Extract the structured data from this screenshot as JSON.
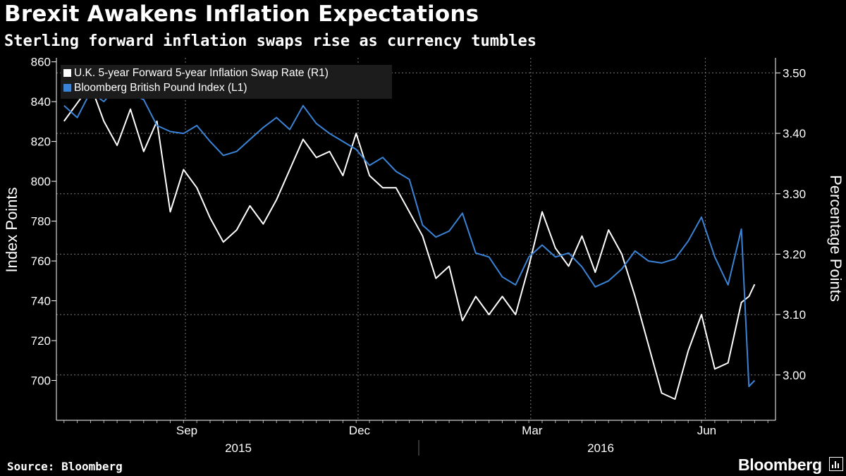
{
  "header": {
    "title": "Brexit Awakens Inflation Expectations",
    "subtitle": "Sterling forward inflation swaps rise as currency tumbles"
  },
  "footer": {
    "source": "Source: Bloomberg",
    "brand": "Bloomberg"
  },
  "colors": {
    "swap": "#ffffff",
    "pound": "#3b83d6",
    "grid": "#7a7a7a",
    "background": "#000000"
  },
  "chart_data": {
    "type": "line",
    "title": "Brexit Awakens Inflation Expectations",
    "subtitle": "Sterling forward inflation swaps rise as currency tumbles",
    "ylabel_left": "Index Points",
    "ylabel_right": "Percentage Points",
    "ylim_left": [
      680,
      862
    ],
    "ylim_right": [
      2.925,
      3.525
    ],
    "yticks_left": [
      "860",
      "840",
      "820",
      "800",
      "780",
      "760",
      "740",
      "720",
      "700"
    ],
    "yticks_right": [
      "3.50",
      "3.40",
      "3.30",
      "3.20",
      "3.10",
      "3.00"
    ],
    "xticks": [
      "Sep",
      "Dec",
      "Mar",
      "Jun"
    ],
    "years": [
      "2015",
      "2016"
    ],
    "grid": true,
    "legend_position": "top-left",
    "x": [
      "2015-06-29",
      "2015-07-06",
      "2015-07-13",
      "2015-07-20",
      "2015-07-27",
      "2015-08-03",
      "2015-08-10",
      "2015-08-17",
      "2015-08-24",
      "2015-08-31",
      "2015-09-07",
      "2015-09-14",
      "2015-09-21",
      "2015-09-28",
      "2015-10-05",
      "2015-10-12",
      "2015-10-19",
      "2015-10-26",
      "2015-11-02",
      "2015-11-09",
      "2015-11-16",
      "2015-11-23",
      "2015-11-30",
      "2015-12-07",
      "2015-12-14",
      "2015-12-21",
      "2015-12-28",
      "2016-01-04",
      "2016-01-11",
      "2016-01-18",
      "2016-01-25",
      "2016-02-01",
      "2016-02-08",
      "2016-02-15",
      "2016-02-22",
      "2016-02-29",
      "2016-03-07",
      "2016-03-14",
      "2016-03-21",
      "2016-03-28",
      "2016-04-04",
      "2016-04-11",
      "2016-04-18",
      "2016-04-25",
      "2016-05-02",
      "2016-05-09",
      "2016-05-16",
      "2016-05-23",
      "2016-05-30",
      "2016-06-06",
      "2016-06-13",
      "2016-06-20",
      "2016-06-24",
      "2016-06-27"
    ],
    "series": [
      {
        "name": "U.K. 5-year Forward 5-year Inflation Swap Rate (R1)",
        "axis": "right",
        "values": [
          3.42,
          3.45,
          3.48,
          3.42,
          3.38,
          3.44,
          3.37,
          3.42,
          3.27,
          3.34,
          3.31,
          3.26,
          3.22,
          3.24,
          3.28,
          3.25,
          3.29,
          3.34,
          3.39,
          3.36,
          3.37,
          3.33,
          3.4,
          3.33,
          3.31,
          3.31,
          3.27,
          3.23,
          3.16,
          3.18,
          3.09,
          3.13,
          3.1,
          3.13,
          3.1,
          3.18,
          3.27,
          3.21,
          3.18,
          3.23,
          3.17,
          3.24,
          3.2,
          3.13,
          3.05,
          2.97,
          2.96,
          3.04,
          3.1,
          3.01,
          3.02,
          3.12,
          3.13,
          3.15
        ]
      },
      {
        "name": "Bloomberg British Pound Index  (L1)",
        "axis": "left",
        "values": [
          838,
          832,
          845,
          840,
          848,
          844,
          841,
          828,
          825,
          824,
          828,
          820,
          813,
          815,
          821,
          827,
          832,
          826,
          838,
          829,
          824,
          820,
          816,
          808,
          812,
          805,
          801,
          778,
          772,
          775,
          784,
          764,
          762,
          752,
          748,
          762,
          768,
          762,
          764,
          757,
          747,
          750,
          756,
          765,
          760,
          759,
          761,
          770,
          782,
          762,
          748,
          776,
          697,
          700
        ]
      }
    ]
  }
}
